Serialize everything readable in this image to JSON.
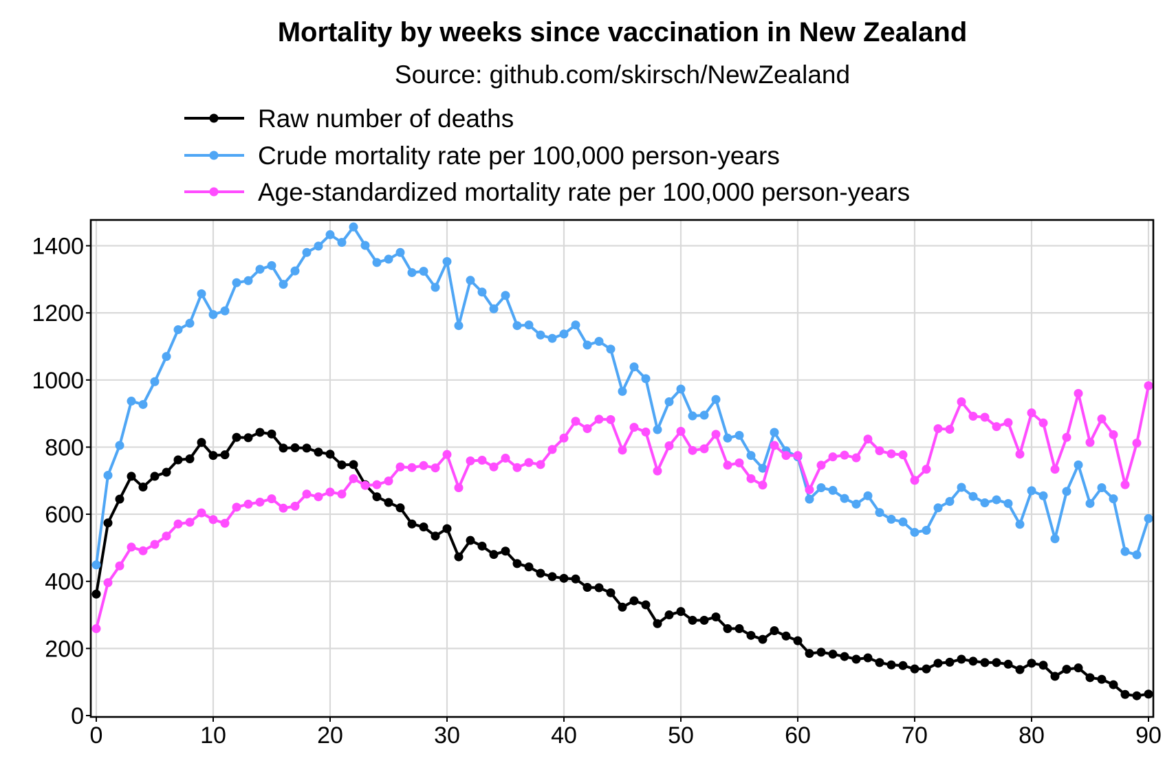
{
  "chart_data": {
    "type": "line",
    "title": "Mortality by weeks since vaccination in New Zealand",
    "subtitle": "Source: github.com/skirsch/NewZealand",
    "xlabel": "",
    "ylabel": "",
    "xlim": [
      0,
      90
    ],
    "ylim": [
      0,
      1480
    ],
    "x_ticks": [
      0,
      10,
      20,
      30,
      40,
      50,
      60,
      70,
      80,
      90
    ],
    "y_ticks": [
      0,
      200,
      400,
      600,
      800,
      1000,
      1200,
      1400
    ],
    "grid": true,
    "legend_position": "top",
    "series": [
      {
        "name": "Raw number of deaths",
        "color": "#000000",
        "values": [
          362,
          574,
          645,
          713,
          681,
          713,
          725,
          762,
          765,
          814,
          775,
          777,
          829,
          828,
          844,
          839,
          797,
          798,
          797,
          785,
          779,
          747,
          748,
          688,
          652,
          635,
          619,
          571,
          562,
          535,
          557,
          473,
          522,
          505,
          480,
          490,
          453,
          443,
          424,
          414,
          409,
          407,
          382,
          381,
          366,
          323,
          342,
          330,
          274,
          300,
          310,
          284,
          284,
          294,
          259,
          259,
          239,
          227,
          253,
          237,
          223,
          185,
          189,
          183,
          176,
          168,
          172,
          158,
          151,
          149,
          139,
          139,
          156,
          159,
          168,
          162,
          158,
          158,
          153,
          137,
          156,
          150,
          117,
          138,
          142,
          113,
          108,
          92,
          63,
          59,
          64
        ]
      },
      {
        "name": "Crude mortality rate per 100,000 person-years",
        "color": "#4fa6f5",
        "values": [
          449,
          716,
          805,
          937,
          927,
          995,
          1070,
          1150,
          1169,
          1257,
          1195,
          1206,
          1290,
          1296,
          1330,
          1341,
          1285,
          1325,
          1380,
          1399,
          1433,
          1410,
          1456,
          1401,
          1350,
          1360,
          1380,
          1320,
          1324,
          1276,
          1353,
          1162,
          1297,
          1262,
          1212,
          1252,
          1162,
          1164,
          1134,
          1124,
          1137,
          1164,
          1104,
          1115,
          1092,
          966,
          1039,
          1004,
          852,
          935,
          973,
          893,
          895,
          942,
          827,
          835,
          775,
          737,
          844,
          789,
          771,
          645,
          679,
          671,
          647,
          630,
          655,
          605,
          585,
          577,
          546,
          552,
          619,
          638,
          680,
          653,
          634,
          643,
          632,
          570,
          670,
          655,
          527,
          668,
          747,
          632,
          679,
          646,
          489,
          479,
          587
        ]
      },
      {
        "name": "Age-standardized mortality rate per 100,000 person-years",
        "color": "#ff4dff",
        "values": [
          259,
          396,
          446,
          502,
          491,
          510,
          535,
          571,
          576,
          604,
          584,
          573,
          621,
          630,
          636,
          646,
          618,
          624,
          660,
          652,
          666,
          660,
          706,
          686,
          688,
          699,
          741,
          739,
          745,
          738,
          778,
          679,
          759,
          761,
          741,
          767,
          739,
          754,
          748,
          793,
          827,
          877,
          855,
          883,
          882,
          791,
          859,
          845,
          729,
          804,
          847,
          790,
          795,
          838,
          746,
          753,
          706,
          687,
          805,
          775,
          775,
          673,
          746,
          771,
          776,
          768,
          824,
          789,
          780,
          777,
          701,
          734,
          855,
          853,
          935,
          892,
          889,
          861,
          873,
          779,
          902,
          872,
          734,
          829,
          960,
          814,
          884,
          837,
          688,
          812,
          983
        ]
      }
    ]
  }
}
